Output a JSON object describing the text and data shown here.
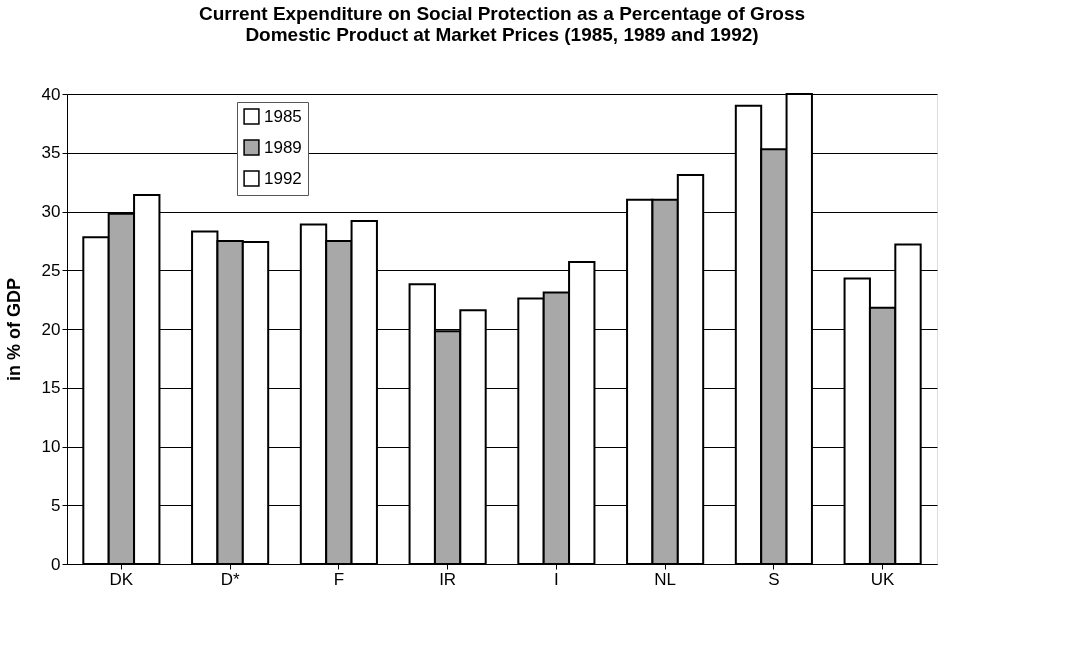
{
  "chart_data": {
    "type": "bar",
    "title": [
      "Current Expenditure on Social Protection as a Percentage of Gross",
      "Domestic Product at Market Prices (1985, 1989 and 1992)"
    ],
    "ylabel": "in % of GDP",
    "categories": [
      "DK",
      "D*",
      "F",
      "IR",
      "I",
      "NL",
      "S",
      "UK"
    ],
    "series": [
      {
        "name": "1985",
        "color": "#ffffff",
        "values": [
          27.8,
          28.3,
          28.9,
          23.8,
          22.6,
          31.0,
          39.0,
          24.3
        ]
      },
      {
        "name": "1989",
        "color": "#a8a8a8",
        "values": [
          29.8,
          27.5,
          27.5,
          19.8,
          23.1,
          31.0,
          35.3,
          21.8
        ]
      },
      {
        "name": "1992",
        "color": "#ffffff",
        "values": [
          31.4,
          27.4,
          29.2,
          21.6,
          25.7,
          33.1,
          40.0,
          27.2
        ]
      }
    ],
    "ylim": [
      0,
      40
    ],
    "yticks": [
      0,
      5,
      10,
      15,
      20,
      25,
      30,
      35,
      40
    ],
    "grid": "y",
    "legend": "top left"
  }
}
